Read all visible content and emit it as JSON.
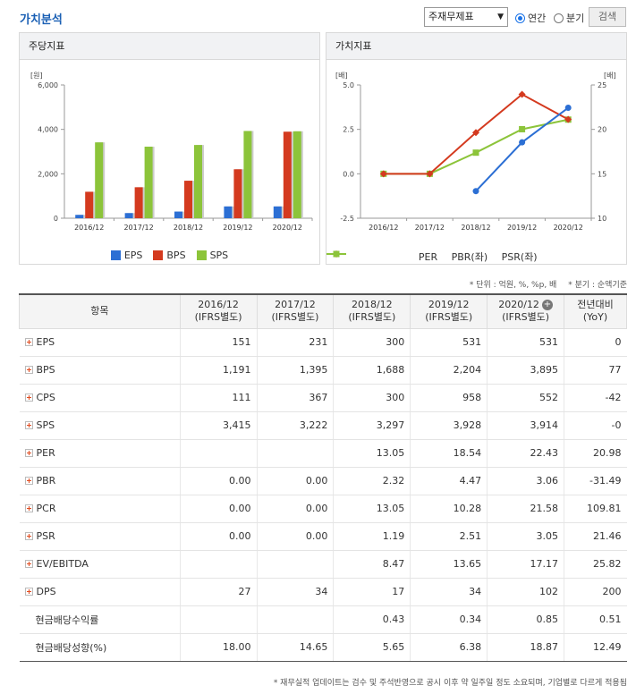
{
  "header": {
    "title": "가치분석",
    "select_value": "주재무제표",
    "radio_annual": "연간",
    "radio_quarter": "분기",
    "search_label": "검색"
  },
  "left_panel": {
    "title": "주당지표",
    "legend": [
      "EPS",
      "BPS",
      "SPS"
    ]
  },
  "right_panel": {
    "title": "가치지표",
    "legend": [
      "PER",
      "PBR(좌)",
      "PSR(좌)"
    ]
  },
  "colors": {
    "EPS": "#2c6fd4",
    "BPS": "#d43a1f",
    "SPS": "#8cc43a",
    "PER": "#2c6fd4",
    "PBR": "#d43a1f",
    "PSR": "#8cc43a"
  },
  "chart_data": [
    {
      "type": "bar",
      "title": "주당지표",
      "ylabel": "[원]",
      "categories": [
        "2016/12",
        "2017/12",
        "2018/12",
        "2019/12",
        "2020/12"
      ],
      "ylim": [
        0,
        6000
      ],
      "yticks": [
        "0",
        "2,000",
        "4,000",
        "6,000"
      ],
      "series": [
        {
          "name": "EPS",
          "values": [
            151,
            231,
            300,
            531,
            531
          ]
        },
        {
          "name": "BPS",
          "values": [
            1191,
            1395,
            1688,
            2204,
            3895
          ]
        },
        {
          "name": "SPS",
          "values": [
            3415,
            3222,
            3297,
            3928,
            3914
          ]
        }
      ]
    },
    {
      "type": "line",
      "title": "가치지표",
      "ylabel": "[배]",
      "ylabel_right": "[배]",
      "categories": [
        "2016/12",
        "2017/12",
        "2018/12",
        "2019/12",
        "2020/12"
      ],
      "ylim": [
        -2.5,
        5
      ],
      "yticks": [
        "-2.5",
        "0.0",
        "2.5",
        "5.0"
      ],
      "ylim_right": [
        10,
        25
      ],
      "yticks_right": [
        "10",
        "15",
        "20",
        "25"
      ],
      "series": [
        {
          "name": "PER",
          "axis": "right",
          "values": [
            null,
            null,
            13.05,
            18.54,
            22.43
          ]
        },
        {
          "name": "PBR(좌)",
          "axis": "left",
          "values": [
            0,
            0,
            2.32,
            4.47,
            3.06
          ]
        },
        {
          "name": "PSR(좌)",
          "axis": "left",
          "values": [
            0,
            0,
            1.19,
            2.51,
            3.05
          ]
        }
      ]
    }
  ],
  "unit_note": {
    "unit": "* 단위 : 억원, %, %p, 배",
    "quarter": "* 분기 : 순액기준"
  },
  "table": {
    "headers": [
      {
        "line1": "항목",
        "line2": ""
      },
      {
        "line1": "2016/12",
        "line2": "(IFRS별도)"
      },
      {
        "line1": "2017/12",
        "line2": "(IFRS별도)"
      },
      {
        "line1": "2018/12",
        "line2": "(IFRS별도)"
      },
      {
        "line1": "2019/12",
        "line2": "(IFRS별도)"
      },
      {
        "line1": "2020/12",
        "line2": "(IFRS별도)"
      },
      {
        "line1": "전년대비",
        "line2": "(YoY)"
      }
    ],
    "rows": [
      {
        "label": "EPS",
        "expand": true,
        "cells": [
          "151",
          "231",
          "300",
          "531",
          "531",
          "0"
        ]
      },
      {
        "label": "BPS",
        "expand": true,
        "cells": [
          "1,191",
          "1,395",
          "1,688",
          "2,204",
          "3,895",
          "77"
        ]
      },
      {
        "label": "CPS",
        "expand": true,
        "cells": [
          "111",
          "367",
          "300",
          "958",
          "552",
          "-42"
        ]
      },
      {
        "label": "SPS",
        "expand": true,
        "cells": [
          "3,415",
          "3,222",
          "3,297",
          "3,928",
          "3,914",
          "-0"
        ]
      },
      {
        "label": "PER",
        "expand": true,
        "cells": [
          "",
          "",
          "13.05",
          "18.54",
          "22.43",
          "20.98"
        ]
      },
      {
        "label": "PBR",
        "expand": true,
        "cells": [
          "0.00",
          "0.00",
          "2.32",
          "4.47",
          "3.06",
          "-31.49"
        ]
      },
      {
        "label": "PCR",
        "expand": true,
        "cells": [
          "0.00",
          "0.00",
          "13.05",
          "10.28",
          "21.58",
          "109.81"
        ]
      },
      {
        "label": "PSR",
        "expand": true,
        "cells": [
          "0.00",
          "0.00",
          "1.19",
          "2.51",
          "3.05",
          "21.46"
        ]
      },
      {
        "label": "EV/EBITDA",
        "expand": true,
        "cells": [
          "",
          "",
          "8.47",
          "13.65",
          "17.17",
          "25.82"
        ]
      },
      {
        "label": "DPS",
        "expand": true,
        "cells": [
          "27",
          "34",
          "17",
          "34",
          "102",
          "200"
        ]
      },
      {
        "label": "현금배당수익률",
        "expand": false,
        "cells": [
          "",
          "",
          "0.43",
          "0.34",
          "0.85",
          "0.51"
        ]
      },
      {
        "label": "현금배당성향(%)",
        "expand": false,
        "cells": [
          "18.00",
          "14.65",
          "5.65",
          "6.38",
          "18.87",
          "12.49"
        ]
      }
    ]
  },
  "footnote": "* 재무실적 업데이트는 검수 및 주석반영으로 공시 이후 약 일주일 정도 소요되며, 기업별로 다르게 적용됨"
}
